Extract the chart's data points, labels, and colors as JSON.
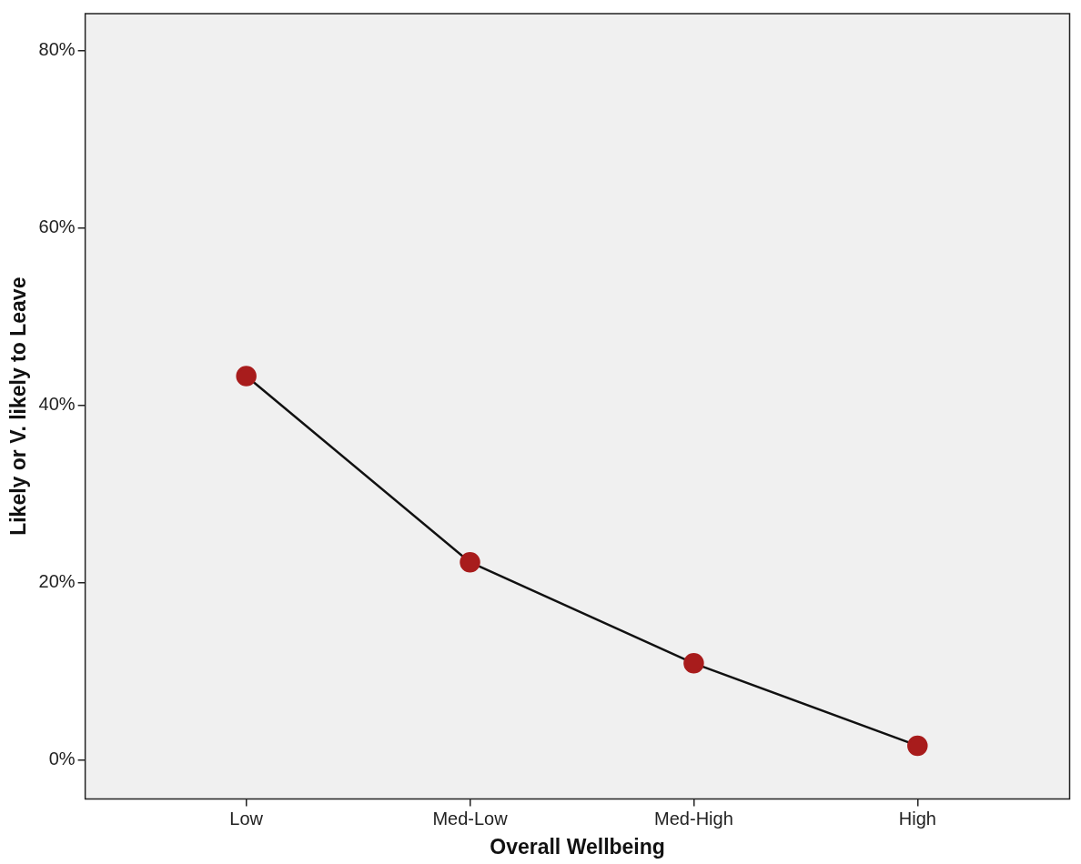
{
  "chart_data": {
    "type": "line",
    "xlabel": "Overall Wellbeing",
    "ylabel": "Likely or V. likely to Leave",
    "categories": [
      "Low",
      "Med-Low",
      "Med-High",
      "High"
    ],
    "series": [
      {
        "color": "#a81c1c",
        "values": [
          43.3,
          22.3,
          10.9,
          1.6
        ]
      }
    ],
    "ylim": [
      -4.4,
      84.2
    ],
    "yticks": [
      {
        "value": 0,
        "label": "0%"
      },
      {
        "value": 20,
        "label": "20%"
      },
      {
        "value": 40,
        "label": "40%"
      },
      {
        "value": 60,
        "label": "60%"
      },
      {
        "value": 80,
        "label": "80%"
      }
    ],
    "grid": false,
    "legend": false,
    "marker": "circle",
    "line_style": "solid"
  }
}
